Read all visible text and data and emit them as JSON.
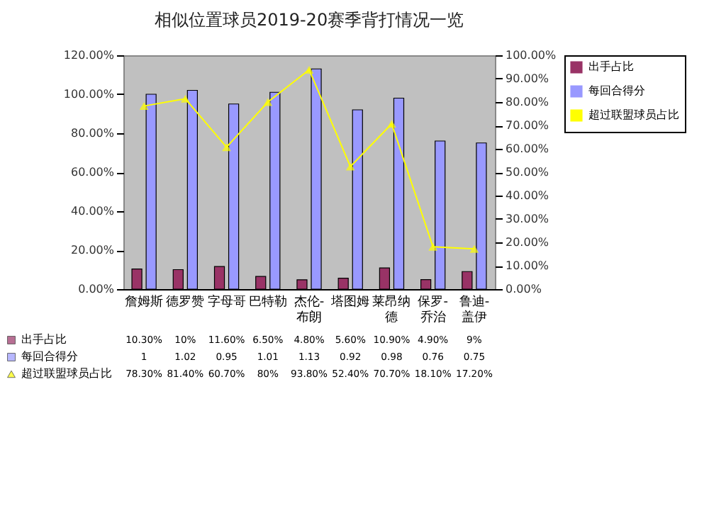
{
  "chart_data": {
    "type": "bar",
    "title": "相似位置球员2019-20赛季背打情况一览",
    "categories": [
      "詹姆斯",
      "德罗赞",
      "字母哥",
      "巴特勒",
      "杰伦-布朗",
      "塔图姆",
      "莱昂纳德",
      "保罗-乔治",
      "鲁迪-盖伊"
    ],
    "series": [
      {
        "name": "出手占比",
        "color": "#993366",
        "values": [
          0.103,
          0.1,
          0.116,
          0.065,
          0.048,
          0.056,
          0.109,
          0.049,
          0.09
        ],
        "value_labels": [
          "10.30%",
          "10%",
          "11.60%",
          "6.50%",
          "4.80%",
          "5.60%",
          "10.90%",
          "4.90%",
          "9%"
        ]
      },
      {
        "name": "每回合得分",
        "color": "#9999ff",
        "values": [
          1,
          1.02,
          0.95,
          1.01,
          1.13,
          0.92,
          0.98,
          0.76,
          0.75
        ],
        "value_labels": [
          "1",
          "1.02",
          "0.95",
          "1.01",
          "1.13",
          "0.92",
          "0.98",
          "0.76",
          "0.75"
        ]
      },
      {
        "name": "超过联盟球员占比",
        "type": "line",
        "axis": "y2",
        "marker": "triangle",
        "color": "#ffff00",
        "values": [
          0.783,
          0.814,
          0.607,
          0.8,
          0.938,
          0.524,
          0.707,
          0.181,
          0.172
        ],
        "value_labels": [
          "78.30%",
          "81.40%",
          "60.70%",
          "80%",
          "93.80%",
          "52.40%",
          "70.70%",
          "18.10%",
          "17.20%"
        ]
      }
    ],
    "ylim": [
      0,
      1.2
    ],
    "yticks": [
      {
        "value": 0,
        "label": "0.00%"
      },
      {
        "value": 0.2,
        "label": "20.00%"
      },
      {
        "value": 0.4,
        "label": "40.00%"
      },
      {
        "value": 0.6,
        "label": "60.00%"
      },
      {
        "value": 0.8,
        "label": "80.00%"
      },
      {
        "value": 1,
        "label": "100.00%"
      },
      {
        "value": 1.2,
        "label": "120.00%"
      }
    ],
    "y2lim": [
      0,
      1
    ],
    "y2ticks": [
      {
        "value": 0,
        "label": "0.00%"
      },
      {
        "value": 0.1,
        "label": "10.00%"
      },
      {
        "value": 0.2,
        "label": "20.00%"
      },
      {
        "value": 0.3,
        "label": "30.00%"
      },
      {
        "value": 0.4,
        "label": "40.00%"
      },
      {
        "value": 0.5,
        "label": "50.00%"
      },
      {
        "value": 0.6,
        "label": "60.00%"
      },
      {
        "value": 0.7,
        "label": "70.00%"
      },
      {
        "value": 0.8,
        "label": "80.00%"
      },
      {
        "value": 0.9,
        "label": "90.00%"
      },
      {
        "value": 1,
        "label": "100.00%"
      }
    ],
    "legend": "right",
    "grid": false
  }
}
